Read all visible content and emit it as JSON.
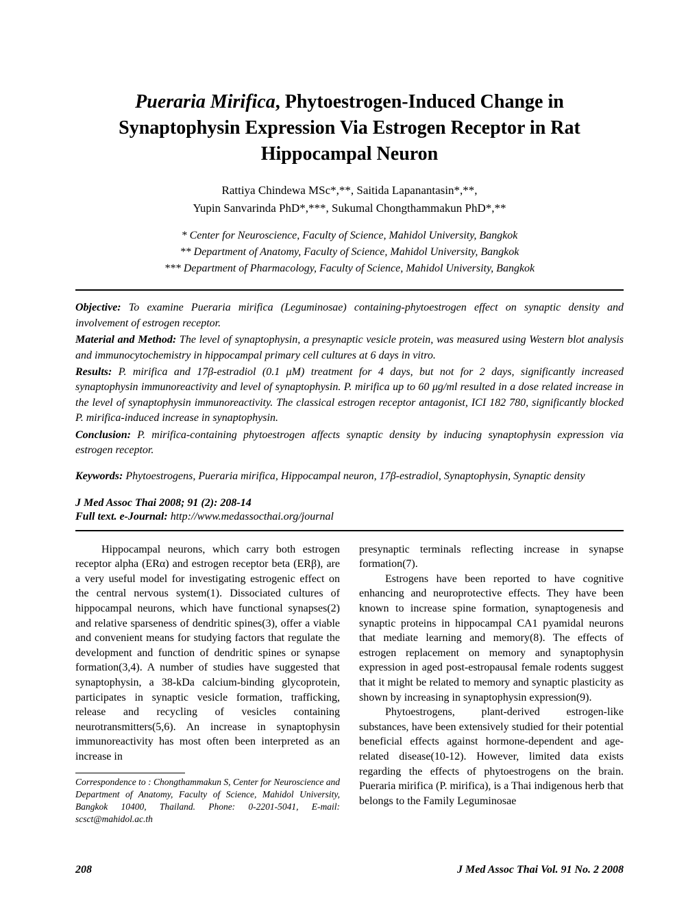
{
  "title": {
    "italic_part": "Pueraria Mirifica",
    "rest": ", Phytoestrogen-Induced Change in Synaptophysin Expression Via Estrogen Receptor in Rat Hippocampal Neuron"
  },
  "authors_line1": "Rattiya Chindewa MSc*,**,  Saitida Lapanantasin*,**,",
  "authors_line2": "Yupin Sanvarinda PhD*,***,  Sukumal Chongthammakun PhD*,**",
  "affiliation1": "* Center for Neuroscience, Faculty of Science, Mahidol University, Bangkok",
  "affiliation2": "** Department of Anatomy, Faculty of Science, Mahidol University, Bangkok",
  "affiliation3": "*** Department of Pharmacology, Faculty of Science, Mahidol University, Bangkok",
  "abstract": {
    "objective_label": "Objective:",
    "objective_text": " To examine Pueraria mirifica (Leguminosae) containing-phytoestrogen effect on synaptic density and involvement of estrogen receptor.",
    "material_label": "Material and Method:",
    "material_text": " The level of synaptophysin, a presynaptic vesicle protein, was measured using Western blot analysis and immunocytochemistry in hippocampal primary cell cultures at 6 days in vitro.",
    "results_label": "Results:",
    "results_text": " P. mirifica and 17β-estradiol (0.1 μM) treatment for 4 days, but not for 2 days, significantly increased synaptophysin immunoreactivity and level of synaptophysin. P. mirifica up to 60 μg/ml resulted in a dose related increase in the level of synaptophysin immunoreactivity. The classical estrogen receptor antagonist, ICI 182 780, significantly blocked P. mirifica-induced increase in synaptophysin.",
    "conclusion_label": "Conclusion:",
    "conclusion_text": " P. mirifica-containing phytoestrogen affects synaptic density by inducing synaptophysin expression via estrogen receptor."
  },
  "keywords_label": "Keywords:",
  "keywords_text": " Phytoestrogens, Pueraria mirifica, Hippocampal neuron, 17β-estradiol, Synaptophysin, Synaptic density",
  "citation": "J Med Assoc Thai 2008; 91 (2): 208-14",
  "fulltext_label": "Full text. e-Journal:",
  "fulltext_url": " http://www.medassocthai.org/journal",
  "body": {
    "col1_p1": "Hippocampal neurons, which carry both estrogen receptor alpha (ERα) and estrogen receptor beta (ERβ), are a very useful model for investigating estrogenic effect on the central nervous system(1). Dissociated cultures of hippocampal neurons, which have functional synapses(2) and relative sparseness of dendritic spines(3), offer a viable and convenient means for studying factors that regulate the development and function of dendritic spines or synapse formation(3,4). A number of studies have suggested that synaptophysin, a 38-kDa calcium-binding glycoprotein, participates in synaptic vesicle formation, trafficking, release and recycling of vesicles containing neurotransmitters(5,6). An increase in synaptophysin immunoreactivity has most often been interpreted as an increase in",
    "correspondence": "Correspondence to : Chongthammakun S, Center for Neuroscience and Department of Anatomy, Faculty of Science, Mahidol University, Bangkok 10400, Thailand. Phone: 0-2201-5041, E-mail: scsct@mahidol.ac.th",
    "col2_p1": "presynaptic terminals reflecting increase in synapse formation(7).",
    "col2_p2": "Estrogens have been reported to have cognitive enhancing and neuroprotective effects. They have been known to increase spine formation, synaptogenesis and synaptic proteins in hippocampal CA1 pyamidal neurons that mediate learning and memory(8). The effects of estrogen replacement on memory and synaptophysin expression in aged post-estropausal female rodents suggest that it might be related to memory and synaptic plasticity as shown by increasing in synaptophysin expression(9).",
    "col2_p3": "Phytoestrogens, plant-derived estrogen-like substances, have been extensively studied for their potential beneficial effects against hormone-dependent and age-related disease(10-12). However, limited data exists regarding the effects of phytoestrogens on the brain. Pueraria mirifica (P. mirifica), is a Thai indigenous herb that belongs to the Family Leguminosae"
  },
  "footer": {
    "page": "208",
    "journal": "J Med Assoc Thai Vol. 91 No. 2  2008"
  }
}
